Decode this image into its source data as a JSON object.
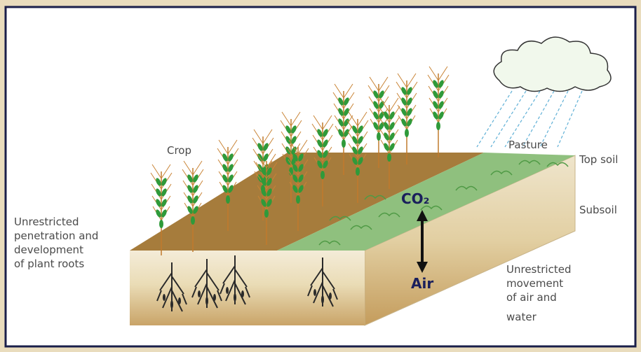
{
  "labels": {
    "crop": "Crop",
    "pasture": "Pasture",
    "top_soil": "Top soil",
    "subsoil": "Subsoil",
    "roots": [
      "Unrestricted",
      "penetration and",
      "development",
      "of plant roots"
    ],
    "co2": "CO₂",
    "air": "Air",
    "movement": [
      "Unrestricted",
      "movement",
      "of air and",
      "water"
    ]
  }
}
